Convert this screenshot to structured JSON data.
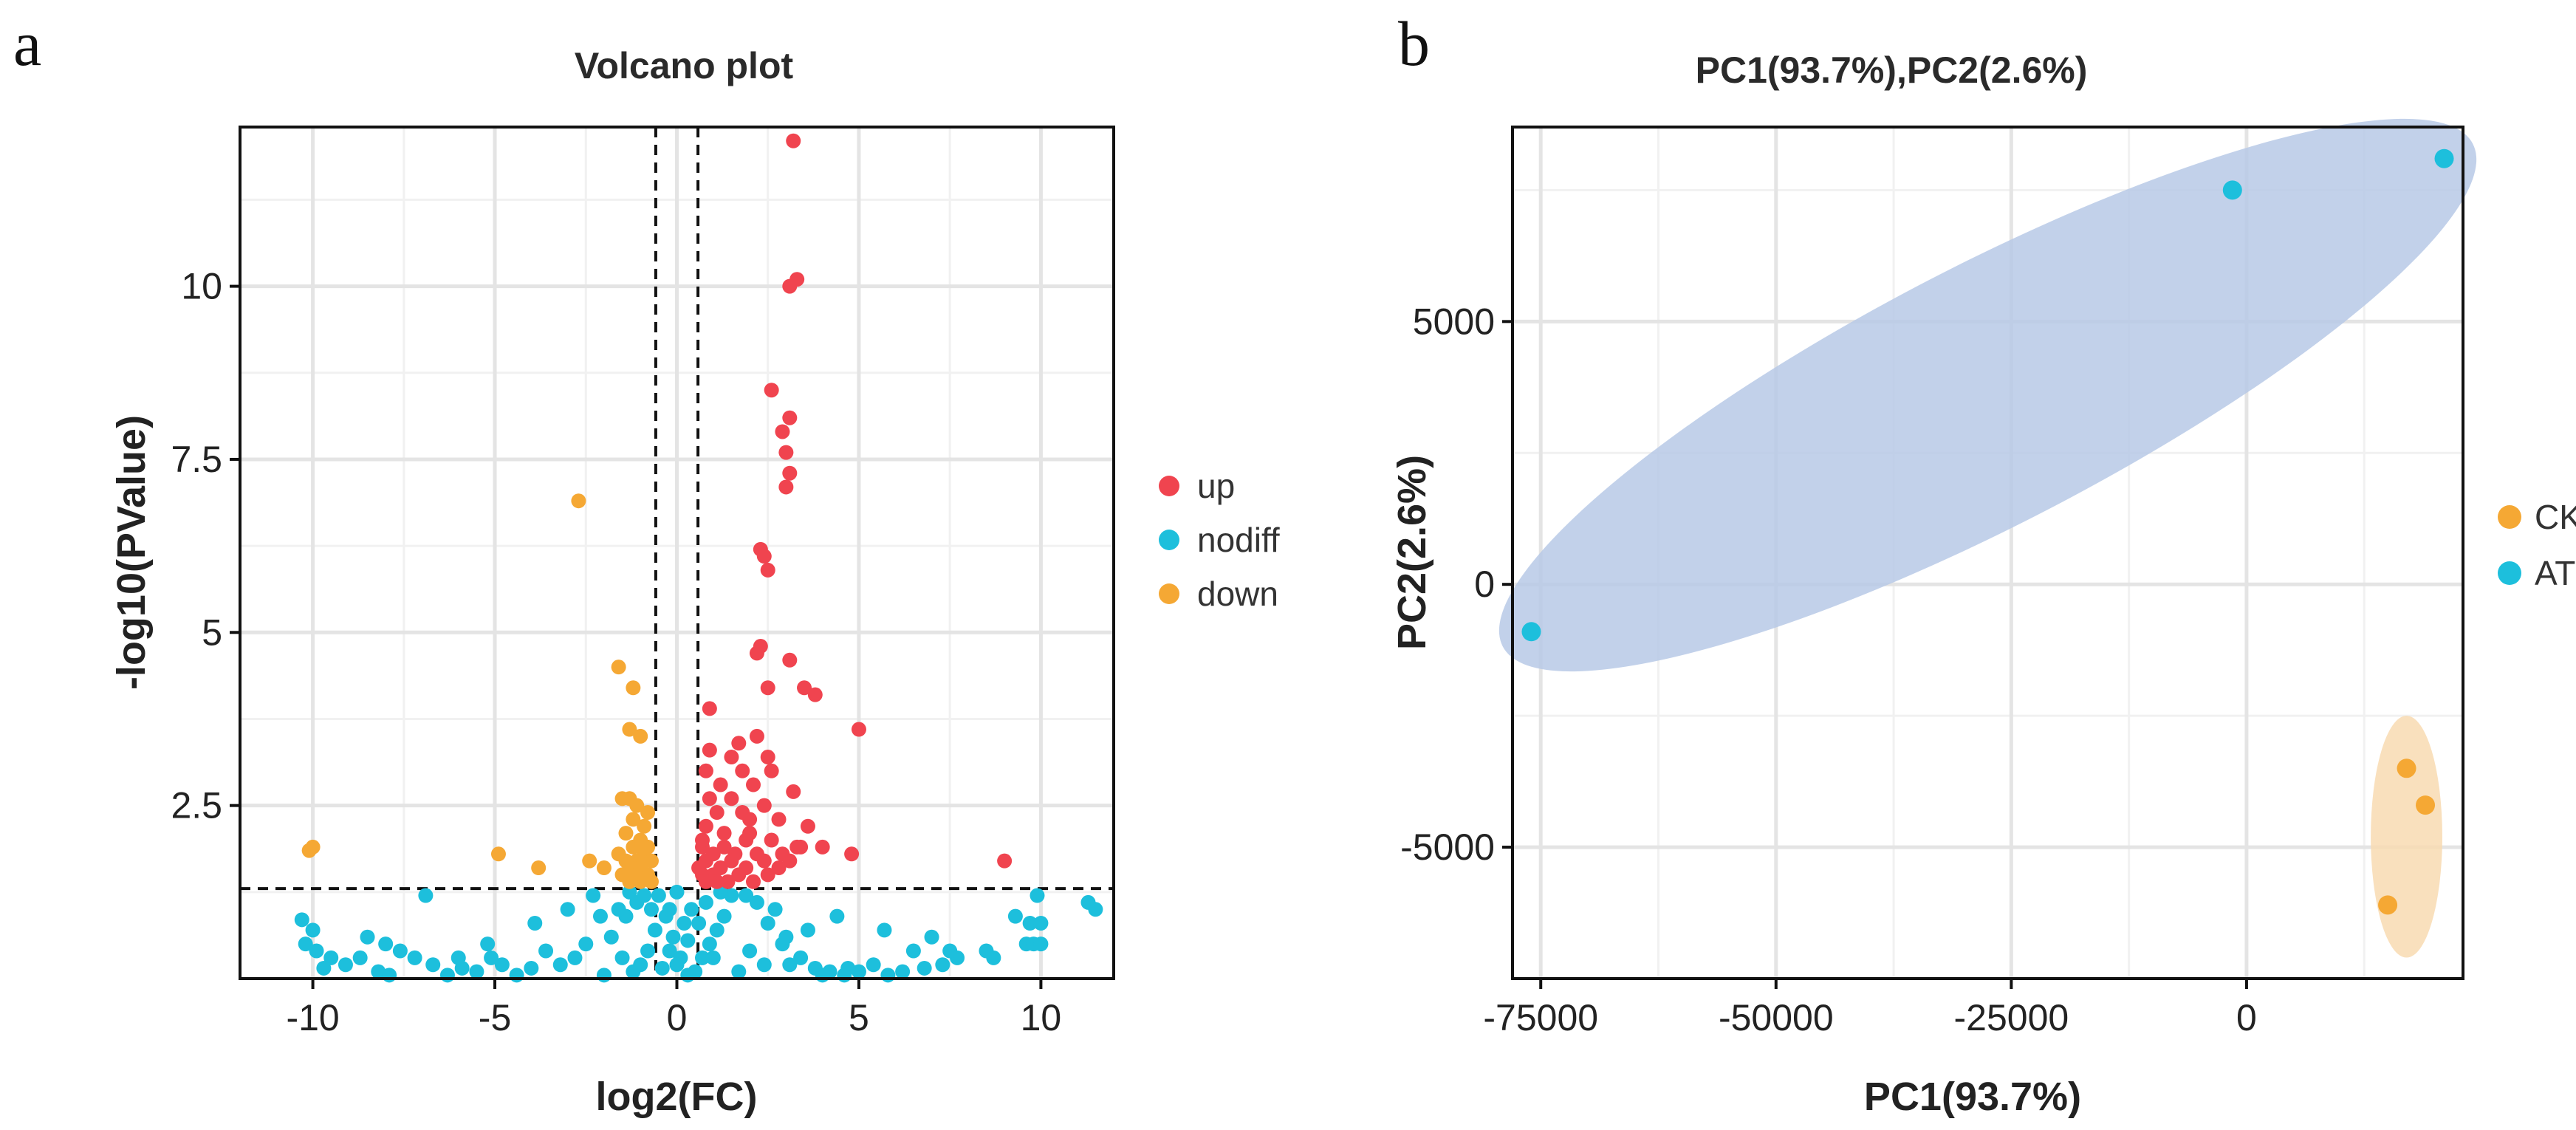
{
  "panels": {
    "a": "a",
    "b": "b"
  },
  "colors": {
    "up": "#f0444f",
    "nodiff": "#1dbfdc",
    "down": "#f5a834",
    "ck_ellipse": "#f8dbb2",
    "at_ellipse": "#b7c9e6"
  },
  "chart_data": [
    {
      "type": "scatter",
      "title": "Volcano plot",
      "xlabel": "log2(FC)",
      "ylabel": "-log10(PValue)",
      "xlim": [
        -12,
        12
      ],
      "ylim": [
        0,
        12.3
      ],
      "xticks": [
        -10,
        -5,
        0,
        5,
        10
      ],
      "xtick_labels": [
        "-10",
        "-5",
        "0",
        "5",
        "10"
      ],
      "yticks": [
        2.5,
        5,
        7.5,
        10
      ],
      "ytick_labels": [
        "2.5",
        "5",
        "7.5",
        "10"
      ],
      "grid": true,
      "thresholds": {
        "log2fc": [
          -0.58,
          0.58
        ],
        "neg_log10_p": 1.3
      },
      "legend": {
        "position": "right",
        "entries": [
          "up",
          "nodiff",
          "down"
        ]
      },
      "series": [
        {
          "name": "up",
          "points": [
            [
              3.2,
              12.1
            ],
            [
              3.3,
              10.1
            ],
            [
              3.1,
              10.0
            ],
            [
              2.6,
              8.5
            ],
            [
              3.1,
              8.1
            ],
            [
              2.9,
              7.9
            ],
            [
              3.0,
              7.6
            ],
            [
              3.1,
              7.3
            ],
            [
              3.0,
              7.1
            ],
            [
              2.3,
              6.2
            ],
            [
              2.4,
              6.1
            ],
            [
              2.5,
              5.9
            ],
            [
              2.3,
              4.8
            ],
            [
              2.2,
              4.7
            ],
            [
              3.1,
              4.6
            ],
            [
              2.5,
              4.2
            ],
            [
              3.5,
              4.2
            ],
            [
              3.8,
              4.1
            ],
            [
              0.9,
              3.9
            ],
            [
              5.0,
              3.6
            ],
            [
              2.2,
              3.5
            ],
            [
              1.7,
              3.4
            ],
            [
              0.9,
              3.3
            ],
            [
              1.5,
              3.2
            ],
            [
              2.5,
              3.2
            ],
            [
              0.8,
              3.0
            ],
            [
              1.8,
              3.0
            ],
            [
              2.6,
              3.0
            ],
            [
              1.2,
              2.8
            ],
            [
              2.1,
              2.8
            ],
            [
              3.2,
              2.7
            ],
            [
              0.9,
              2.6
            ],
            [
              1.5,
              2.6
            ],
            [
              2.4,
              2.5
            ],
            [
              1.1,
              2.4
            ],
            [
              2.0,
              2.3
            ],
            [
              2.8,
              2.3
            ],
            [
              3.6,
              2.2
            ],
            [
              0.8,
              2.2
            ],
            [
              1.3,
              2.1
            ],
            [
              1.9,
              2.0
            ],
            [
              2.6,
              2.0
            ],
            [
              3.4,
              1.9
            ],
            [
              4.0,
              1.9
            ],
            [
              0.7,
              1.9
            ],
            [
              1.0,
              1.8
            ],
            [
              1.6,
              1.8
            ],
            [
              2.2,
              1.8
            ],
            [
              2.9,
              1.8
            ],
            [
              3.3,
              1.9
            ],
            [
              0.8,
              1.7
            ],
            [
              1.2,
              1.6
            ],
            [
              1.5,
              1.7
            ],
            [
              1.9,
              1.6
            ],
            [
              2.4,
              1.7
            ],
            [
              2.8,
              1.6
            ],
            [
              3.1,
              1.7
            ],
            [
              4.8,
              1.8
            ],
            [
              9.0,
              1.7
            ],
            [
              0.7,
              1.5
            ],
            [
              1.0,
              1.5
            ],
            [
              1.4,
              1.4
            ],
            [
              1.7,
              1.5
            ],
            [
              2.1,
              1.4
            ],
            [
              2.5,
              1.5
            ],
            [
              0.8,
              1.4
            ],
            [
              1.1,
              1.4
            ],
            [
              0.6,
              1.6
            ],
            [
              1.3,
              1.9
            ],
            [
              2.0,
              2.1
            ],
            [
              0.7,
              2.0
            ],
            [
              1.8,
              2.4
            ]
          ]
        },
        {
          "name": "down",
          "points": [
            [
              -2.7,
              6.9
            ],
            [
              -1.6,
              4.5
            ],
            [
              -1.2,
              4.2
            ],
            [
              -1.3,
              3.6
            ],
            [
              -1.0,
              3.5
            ],
            [
              -1.5,
              2.6
            ],
            [
              -1.3,
              2.6
            ],
            [
              -1.1,
              2.5
            ],
            [
              -0.8,
              2.4
            ],
            [
              -1.2,
              2.3
            ],
            [
              -0.9,
              2.2
            ],
            [
              -1.4,
              2.1
            ],
            [
              -1.0,
              2.0
            ],
            [
              -0.8,
              1.9
            ],
            [
              -1.2,
              1.9
            ],
            [
              -1.6,
              1.8
            ],
            [
              -0.9,
              1.8
            ],
            [
              -1.1,
              1.7
            ],
            [
              -1.4,
              1.7
            ],
            [
              -0.7,
              1.7
            ],
            [
              -1.0,
              1.6
            ],
            [
              -1.3,
              1.6
            ],
            [
              -0.8,
              1.5
            ],
            [
              -1.1,
              1.5
            ],
            [
              -1.5,
              1.5
            ],
            [
              -0.7,
              1.4
            ],
            [
              -1.0,
              1.4
            ],
            [
              -1.3,
              1.4
            ],
            [
              -2.0,
              1.6
            ],
            [
              -2.4,
              1.7
            ],
            [
              -4.9,
              1.8
            ],
            [
              -3.8,
              1.6
            ],
            [
              -10.0,
              1.9
            ],
            [
              -10.1,
              1.85
            ],
            [
              -0.9,
              1.45
            ],
            [
              -1.2,
              1.45
            ]
          ]
        },
        {
          "name": "nodiff",
          "points": [
            [
              11.5,
              1.0
            ],
            [
              11.3,
              1.1
            ],
            [
              9.9,
              1.2
            ],
            [
              9.6,
              0.5
            ],
            [
              9.8,
              0.5
            ],
            [
              10.0,
              0.5
            ],
            [
              9.7,
              0.8
            ],
            [
              10.0,
              0.8
            ],
            [
              9.3,
              0.9
            ],
            [
              8.7,
              0.3
            ],
            [
              8.5,
              0.4
            ],
            [
              7.7,
              0.3
            ],
            [
              7.3,
              0.2
            ],
            [
              6.8,
              0.15
            ],
            [
              6.2,
              0.1
            ],
            [
              5.8,
              0.05
            ],
            [
              5.4,
              0.2
            ],
            [
              5.0,
              0.1
            ],
            [
              4.6,
              0.05
            ],
            [
              4.2,
              0.1
            ],
            [
              3.8,
              0.15
            ],
            [
              3.4,
              0.3
            ],
            [
              2.9,
              0.5
            ],
            [
              2.5,
              0.8
            ],
            [
              2.2,
              1.1
            ],
            [
              1.9,
              1.2
            ],
            [
              2.7,
              1.0
            ],
            [
              3.1,
              0.2
            ],
            [
              5.7,
              0.7
            ],
            [
              4.7,
              0.15
            ],
            [
              4.0,
              0.05
            ],
            [
              1.5,
              1.2
            ],
            [
              1.3,
              0.9
            ],
            [
              1.1,
              0.7
            ],
            [
              0.9,
              0.5
            ],
            [
              0.7,
              0.3
            ],
            [
              0.5,
              0.1
            ],
            [
              0.3,
              0.05
            ],
            [
              0.1,
              0.3
            ],
            [
              -0.1,
              0.6
            ],
            [
              -0.3,
              0.9
            ],
            [
              -0.5,
              1.2
            ],
            [
              0.4,
              1.0
            ],
            [
              0.2,
              0.8
            ],
            [
              -0.2,
              0.4
            ],
            [
              0.0,
              0.2
            ],
            [
              -0.6,
              0.7
            ],
            [
              -0.8,
              0.4
            ],
            [
              -1.0,
              0.2
            ],
            [
              -1.2,
              0.1
            ],
            [
              -1.5,
              0.3
            ],
            [
              -1.8,
              0.6
            ],
            [
              -2.1,
              0.9
            ],
            [
              -2.3,
              1.2
            ],
            [
              -1.4,
              0.9
            ],
            [
              -1.1,
              1.1
            ],
            [
              -0.9,
              1.2
            ],
            [
              -2.5,
              0.5
            ],
            [
              -2.8,
              0.3
            ],
            [
              -3.2,
              0.2
            ],
            [
              -3.6,
              0.4
            ],
            [
              -4.0,
              0.15
            ],
            [
              -4.4,
              0.05
            ],
            [
              -4.8,
              0.2
            ],
            [
              -5.1,
              0.3
            ],
            [
              -5.5,
              0.1
            ],
            [
              -5.9,
              0.15
            ],
            [
              -6.3,
              0.05
            ],
            [
              -6.7,
              0.2
            ],
            [
              -6.9,
              1.2
            ],
            [
              -7.2,
              0.3
            ],
            [
              -7.6,
              0.4
            ],
            [
              -8.0,
              0.5
            ],
            [
              -8.5,
              0.6
            ],
            [
              -8.7,
              0.3
            ],
            [
              -9.1,
              0.2
            ],
            [
              -9.5,
              0.3
            ],
            [
              -9.9,
              0.4
            ],
            [
              -10.2,
              0.5
            ],
            [
              -10.3,
              0.85
            ],
            [
              -10.0,
              0.7
            ],
            [
              -9.7,
              0.15
            ],
            [
              -8.2,
              0.1
            ],
            [
              -7.9,
              0.05
            ],
            [
              -6.0,
              0.3
            ],
            [
              -5.2,
              0.5
            ],
            [
              -3.9,
              0.8
            ],
            [
              -3.0,
              1.0
            ],
            [
              -2.0,
              0.05
            ],
            [
              -1.6,
              1.0
            ],
            [
              -0.4,
              0.15
            ],
            [
              0.6,
              0.8
            ],
            [
              1.0,
              0.3
            ],
            [
              1.7,
              0.1
            ],
            [
              2.0,
              0.4
            ],
            [
              2.4,
              0.2
            ],
            [
              3.0,
              0.6
            ],
            [
              3.6,
              0.7
            ],
            [
              4.4,
              0.9
            ],
            [
              6.5,
              0.4
            ],
            [
              7.0,
              0.6
            ],
            [
              7.5,
              0.4
            ],
            [
              -0.7,
              1.0
            ],
            [
              0.8,
              1.1
            ],
            [
              1.2,
              1.25
            ],
            [
              -1.3,
              1.25
            ],
            [
              0.0,
              1.25
            ],
            [
              -0.2,
              1.0
            ],
            [
              0.3,
              0.55
            ]
          ]
        }
      ]
    },
    {
      "type": "scatter",
      "title": "PC1(93.7%),PC2(2.6%)",
      "xlabel": "PC1(93.7%)",
      "ylabel": "PC2(2.6%)",
      "xlim": [
        -78000,
        23000
      ],
      "ylim": [
        -7500,
        8700
      ],
      "xticks": [
        -75000,
        -50000,
        -25000,
        0
      ],
      "xtick_labels": [
        "-75000",
        "-50000",
        "-25000",
        "0"
      ],
      "yticks": [
        -5000,
        0,
        5000
      ],
      "ytick_labels": [
        "-5000",
        "0",
        "5000"
      ],
      "grid": true,
      "legend": {
        "position": "right",
        "entries": [
          "CK",
          "AT"
        ]
      },
      "series": [
        {
          "name": "CK",
          "points": [
            [
              17000,
              -3500
            ],
            [
              19000,
              -4200
            ],
            [
              15000,
              -6100
            ]
          ],
          "ellipse": {
            "center": [
              17000,
              -4800
            ],
            "semi_axes": [
              3800,
              2300
            ],
            "angle_deg": 0
          }
        },
        {
          "name": "AT",
          "points": [
            [
              -76000,
              -900
            ],
            [
              -1500,
              7500
            ],
            [
              21000,
              8100
            ]
          ],
          "ellipse": {
            "center": [
              -27500,
              3600
            ],
            "semi_axes": [
              55000,
              3800
            ],
            "angle_deg": 48
          }
        }
      ]
    }
  ]
}
